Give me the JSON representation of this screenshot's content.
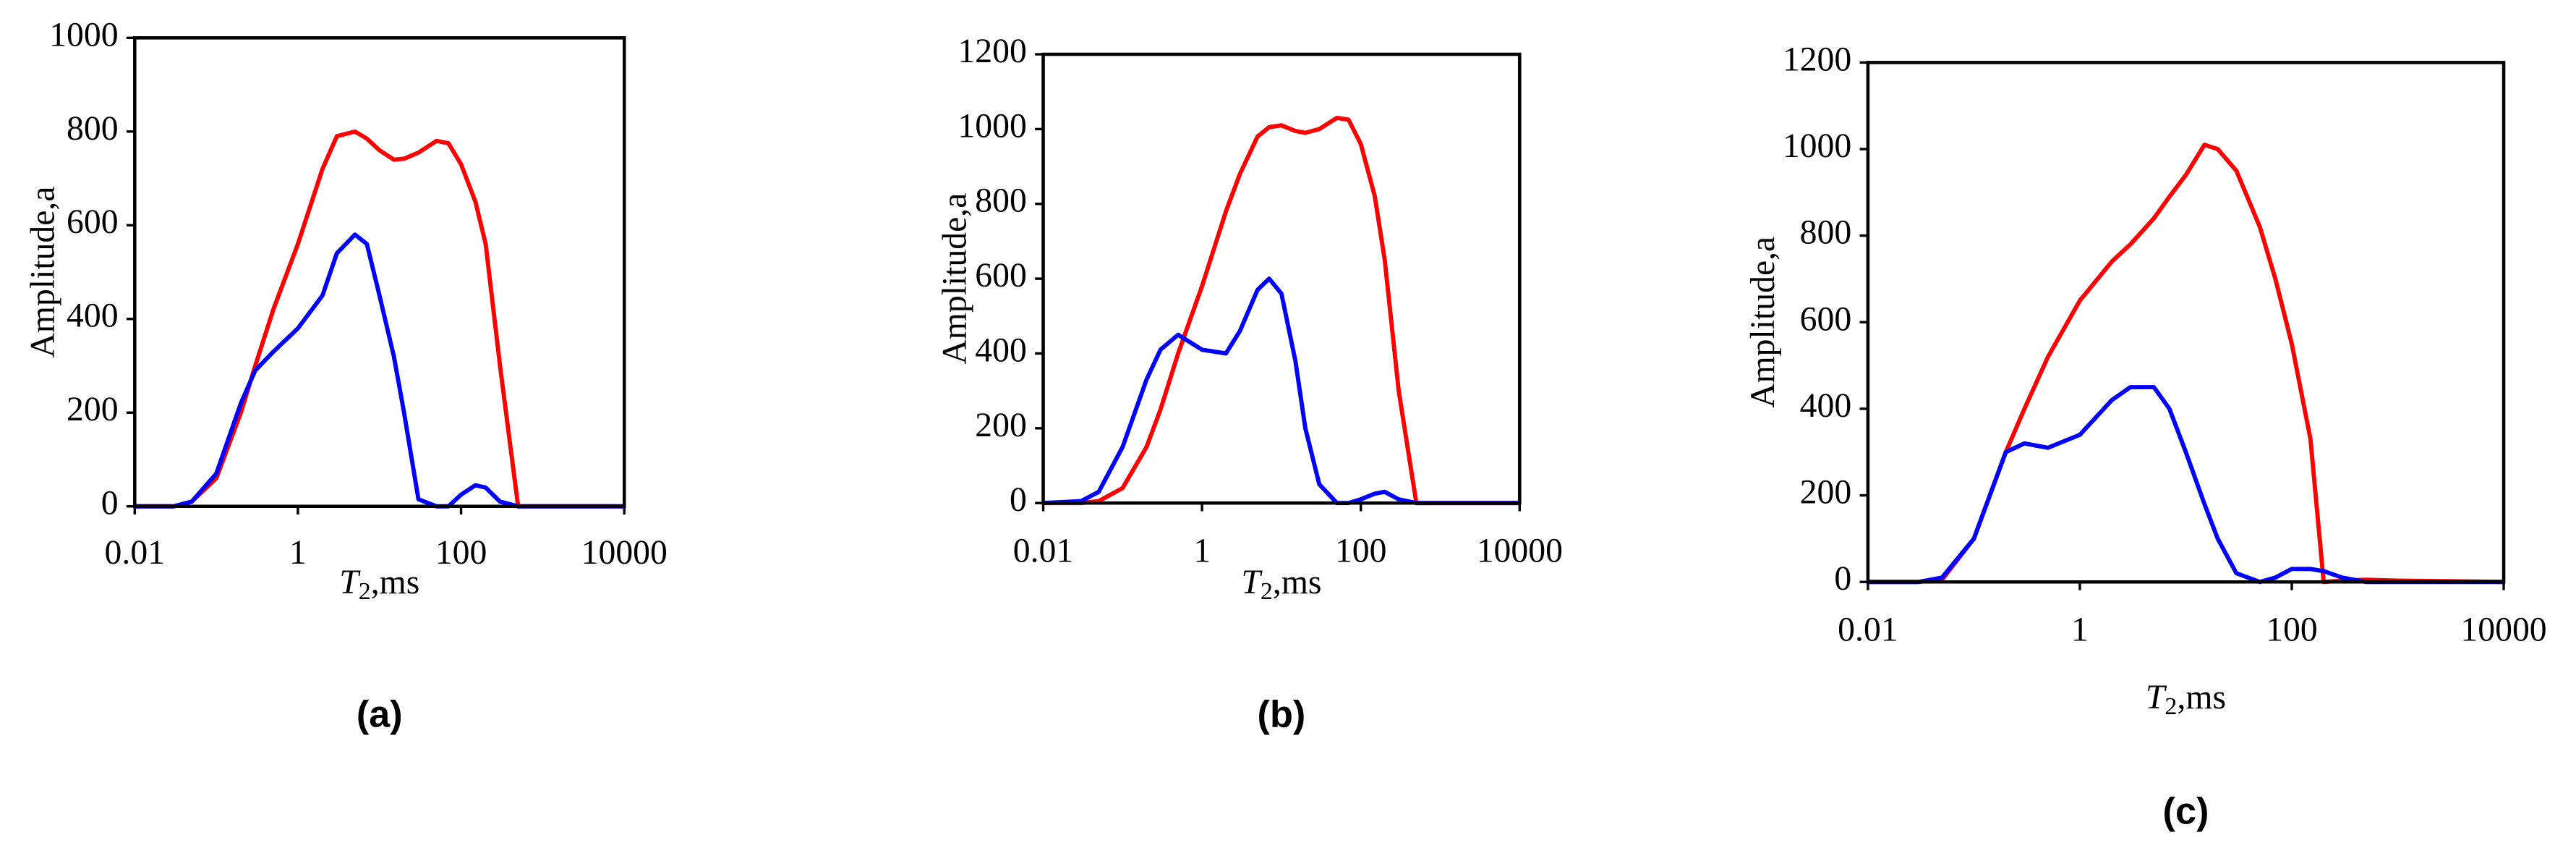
{
  "chart_data": [
    {
      "type": "line",
      "caption": "(a)",
      "ylabel": "Amplitude,a",
      "xlabel_parts": [
        "T",
        "2",
        ",ms"
      ],
      "log_x": true,
      "xlim": [
        0.01,
        10000
      ],
      "xticks": [
        0.01,
        1,
        100,
        10000
      ],
      "ylim": [
        0,
        1000
      ],
      "yticks": [
        0,
        200,
        400,
        600,
        800,
        1000
      ],
      "x": [
        0.01,
        0.03,
        0.05,
        0.1,
        0.2,
        0.3,
        0.5,
        1,
        2,
        3,
        5,
        7,
        10,
        15,
        20,
        30,
        50,
        70,
        100,
        150,
        200,
        300,
        500,
        1000,
        10000
      ],
      "series": [
        {
          "color": "#ff0000",
          "values": [
            0,
            0,
            10,
            60,
            200,
            300,
            420,
            560,
            720,
            790,
            800,
            785,
            760,
            740,
            742,
            755,
            780,
            775,
            730,
            650,
            560,
            300,
            0,
            0,
            0
          ]
        },
        {
          "color": "#0000ff",
          "values": [
            0,
            0,
            10,
            70,
            220,
            290,
            330,
            380,
            450,
            540,
            580,
            560,
            450,
            320,
            200,
            15,
            0,
            0,
            25,
            45,
            40,
            10,
            0,
            0,
            0
          ]
        }
      ]
    },
    {
      "type": "line",
      "caption": "(b)",
      "ylabel": "Amplitude,a",
      "xlabel_parts": [
        "T",
        "2",
        ",ms"
      ],
      "log_x": true,
      "xlim": [
        0.01,
        10000
      ],
      "xticks": [
        0.01,
        1,
        100,
        10000
      ],
      "ylim": [
        0,
        1200
      ],
      "yticks": [
        0,
        200,
        400,
        600,
        800,
        1000,
        1200
      ],
      "x": [
        0.01,
        0.03,
        0.05,
        0.1,
        0.2,
        0.3,
        0.5,
        1,
        2,
        3,
        5,
        7,
        10,
        15,
        20,
        30,
        50,
        70,
        100,
        150,
        200,
        300,
        500,
        1000,
        10000
      ],
      "series": [
        {
          "color": "#ff0000",
          "values": [
            0,
            0,
            5,
            40,
            150,
            250,
            400,
            580,
            780,
            880,
            980,
            1005,
            1010,
            995,
            990,
            1000,
            1030,
            1025,
            960,
            820,
            650,
            300,
            0,
            0,
            0
          ]
        },
        {
          "color": "#0000ff",
          "values": [
            0,
            5,
            30,
            150,
            330,
            410,
            450,
            410,
            400,
            460,
            570,
            600,
            560,
            380,
            200,
            50,
            0,
            0,
            10,
            25,
            30,
            10,
            0,
            0,
            0
          ]
        }
      ]
    },
    {
      "type": "line",
      "caption": "(c)",
      "ylabel": "Amplitude,a",
      "xlabel_parts": [
        "T",
        "2",
        ",ms"
      ],
      "log_x": true,
      "xlim": [
        0.01,
        10000
      ],
      "xticks": [
        0.01,
        1,
        100,
        10000
      ],
      "ylim": [
        0,
        1200
      ],
      "yticks": [
        0,
        200,
        400,
        600,
        800,
        1000,
        1200
      ],
      "x": [
        0.01,
        0.03,
        0.05,
        0.1,
        0.2,
        0.3,
        0.5,
        1,
        2,
        3,
        5,
        7,
        10,
        15,
        20,
        30,
        50,
        70,
        100,
        150,
        200,
        300,
        500,
        1000,
        10000
      ],
      "series": [
        {
          "color": "#ff0000",
          "values": [
            0,
            0,
            5,
            100,
            300,
            400,
            520,
            650,
            740,
            780,
            840,
            890,
            940,
            1010,
            1000,
            950,
            820,
            700,
            550,
            330,
            0,
            3,
            5,
            3,
            0
          ]
        },
        {
          "color": "#0000ff",
          "values": [
            0,
            0,
            10,
            100,
            300,
            320,
            310,
            340,
            420,
            450,
            450,
            400,
            300,
            180,
            100,
            20,
            0,
            10,
            30,
            30,
            25,
            10,
            0,
            0,
            0
          ]
        }
      ]
    }
  ]
}
